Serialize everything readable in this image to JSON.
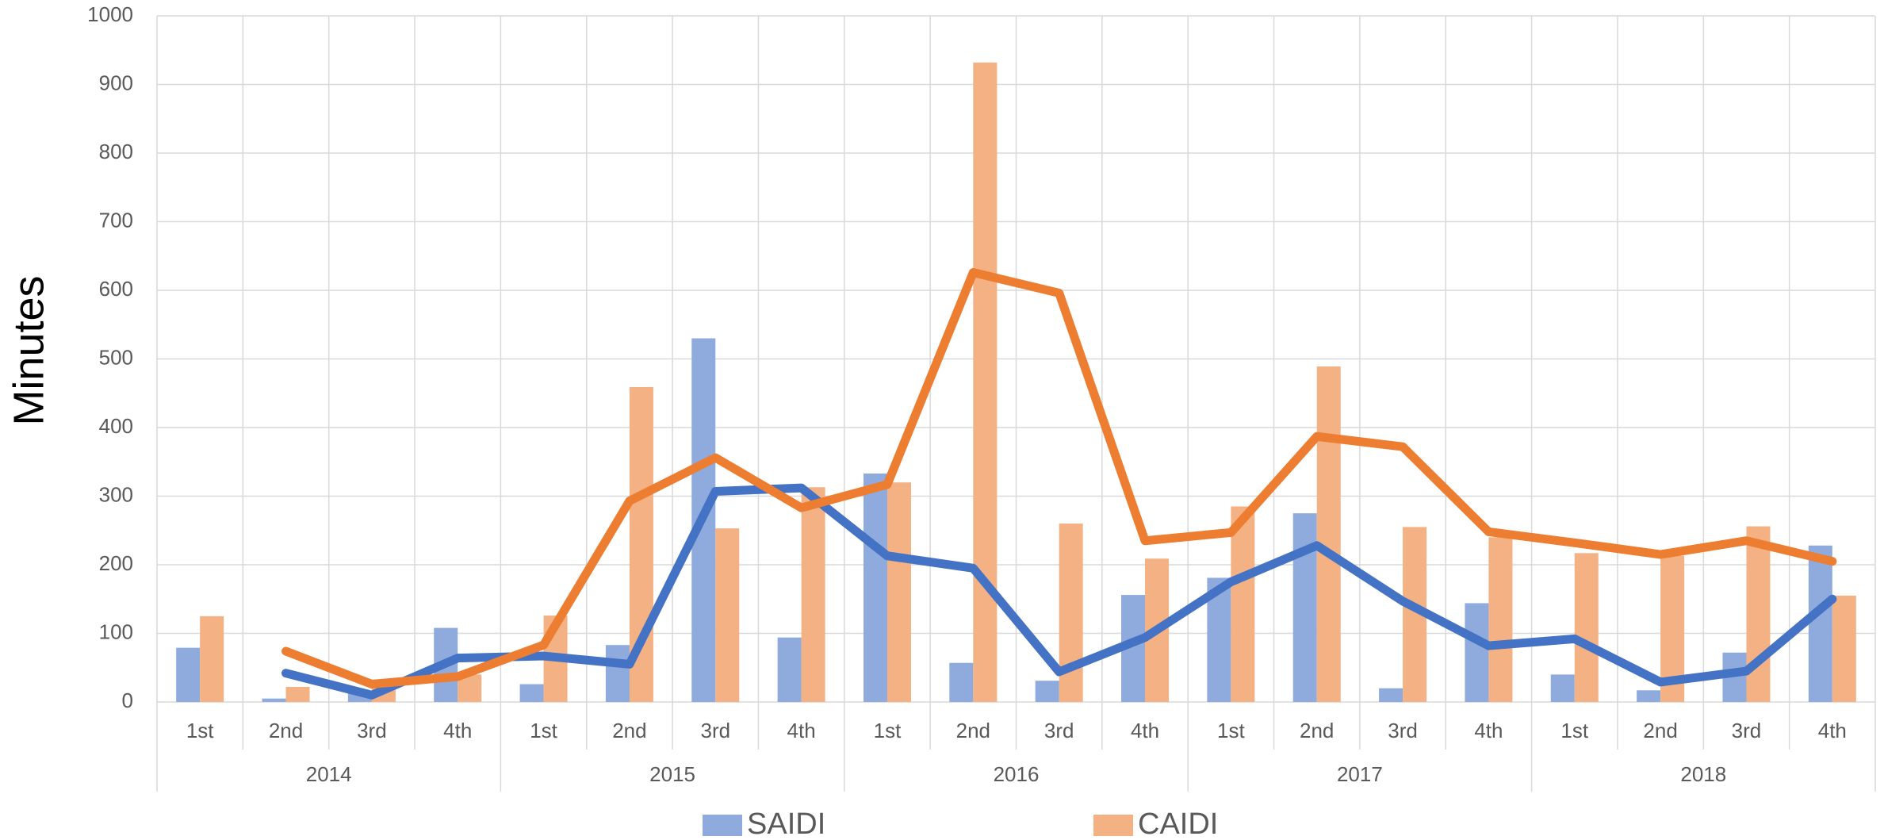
{
  "chart_data": {
    "type": "bar",
    "y_label": "Minutes",
    "categories": [
      "1st",
      "2nd",
      "3rd",
      "4th",
      "1st",
      "2nd",
      "3rd",
      "4th",
      "1st",
      "2nd",
      "3rd",
      "4th",
      "1st",
      "2nd",
      "3rd",
      "4th",
      "1st",
      "2nd",
      "3rd",
      "4th"
    ],
    "groups": [
      "2014",
      "2015",
      "2016",
      "2017",
      "2018"
    ],
    "series": [
      {
        "name": "SAIDI",
        "type": "bar",
        "color": "#8faadc",
        "values": [
          79,
          5,
          15,
          108,
          26,
          83,
          530,
          94,
          333,
          57,
          31,
          156,
          181,
          275,
          20,
          144,
          40,
          17,
          72,
          228
        ]
      },
      {
        "name": "CAIDI",
        "type": "bar",
        "color": "#f4b183",
        "values": [
          125,
          22,
          30,
          40,
          126,
          459,
          253,
          313,
          320,
          932,
          260,
          209,
          285,
          489,
          255,
          240,
          217,
          213,
          256,
          155
        ]
      },
      {
        "type": "line",
        "color": "#4472c4",
        "values": [
          null,
          42,
          10,
          64,
          67,
          55,
          307,
          312,
          213,
          195,
          44,
          94,
          175,
          228,
          147,
          82,
          92,
          29,
          45,
          150
        ]
      },
      {
        "type": "line",
        "color": "#ed7d31",
        "values": [
          null,
          74,
          26,
          37,
          83,
          293,
          356,
          283,
          317,
          626,
          596,
          235,
          247,
          387,
          372,
          248,
          232,
          215,
          235,
          205
        ]
      }
    ],
    "ylim": [
      0,
      1000
    ],
    "yticks": [
      0,
      100,
      200,
      300,
      400,
      500,
      600,
      700,
      800,
      900,
      1000
    ],
    "grid": true
  }
}
